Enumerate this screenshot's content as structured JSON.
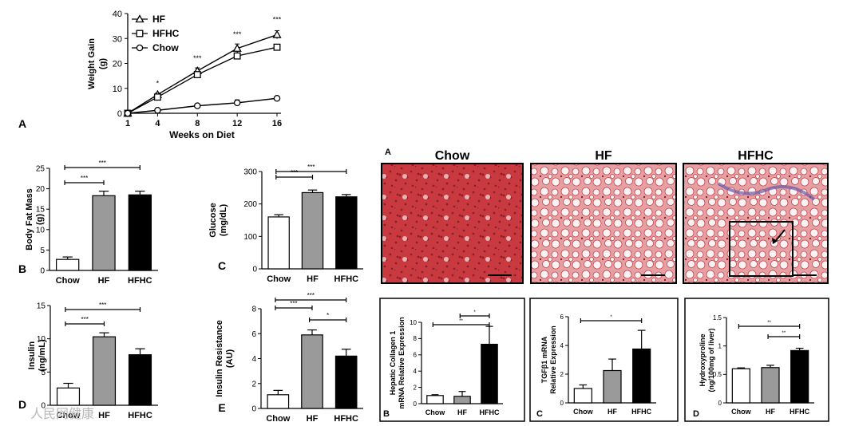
{
  "colors": {
    "white": "#ffffff",
    "gray": "#9a9a9a",
    "black": "#000000",
    "stain_red": "#c8313a",
    "stain_blue": "#6a5aa8"
  },
  "panel_letters": {
    "a": "A",
    "b": "B",
    "c": "C",
    "d": "D",
    "e": "E",
    "right_a": "A",
    "right_b": "B",
    "right_c": "C",
    "right_d": "D"
  },
  "histology": {
    "titles": [
      "Chow",
      "HF",
      "HFHC"
    ]
  },
  "watermark": "人民网健康",
  "chart_data": [
    {
      "id": "weight",
      "type": "line",
      "xlabel": "Weeks on Diet",
      "ylabel": "Weight Gain (g)",
      "x": [
        1,
        4,
        8,
        12,
        16
      ],
      "xticks": [
        1,
        4,
        8,
        12,
        16
      ],
      "ylim": [
        0,
        40
      ],
      "yticks": [
        0,
        10,
        20,
        30,
        40
      ],
      "legend_position": "top-left",
      "series": [
        {
          "name": "HF",
          "marker": "triangle",
          "values": [
            0,
            7.5,
            17,
            26,
            31.5
          ],
          "err": [
            0,
            0.6,
            1.2,
            1.8,
            1.6
          ]
        },
        {
          "name": "HFHC",
          "marker": "square",
          "values": [
            0,
            6.5,
            15.5,
            23,
            26.5
          ],
          "err": [
            0,
            0.5,
            0.9,
            1.0,
            0.8
          ]
        },
        {
          "name": "Chow",
          "marker": "circle",
          "values": [
            0,
            1.2,
            3,
            4.2,
            6
          ],
          "err": [
            0,
            0.3,
            0.5,
            1.2,
            0.4
          ]
        }
      ],
      "annotations": [
        {
          "x": 4,
          "text": "*"
        },
        {
          "x": 8,
          "text": "***"
        },
        {
          "x": 12,
          "text": "***"
        },
        {
          "x": 16,
          "text": "***"
        }
      ]
    },
    {
      "id": "bodyfat",
      "type": "bar",
      "ylabel": "Body Fat Mass (g)",
      "categories": [
        "Chow",
        "HF",
        "HFHC"
      ],
      "values": [
        2.7,
        18.3,
        18.5
      ],
      "err": [
        0.6,
        1.1,
        0.9
      ],
      "ylim": [
        0,
        25
      ],
      "yticks": [
        0,
        5,
        10,
        15,
        20,
        25
      ],
      "brackets": [
        {
          "from": 0,
          "to": 1,
          "text": "***"
        },
        {
          "from": 0,
          "to": 2,
          "text": "***"
        }
      ]
    },
    {
      "id": "glucose",
      "type": "bar",
      "ylabel": "Glucose (mg/dL)",
      "categories": [
        "Chow",
        "HF",
        "HFHC"
      ],
      "values": [
        160,
        235,
        222
      ],
      "err": [
        7,
        8,
        7
      ],
      "ylim": [
        0,
        300
      ],
      "yticks": [
        0,
        100,
        200,
        300
      ],
      "brackets": [
        {
          "from": 0,
          "to": 1,
          "text": "***"
        },
        {
          "from": 0,
          "to": 2,
          "text": "***"
        }
      ]
    },
    {
      "id": "insulin",
      "type": "bar",
      "ylabel": "Insulin (ng/mL)",
      "categories": [
        "Chow",
        "HF",
        "HFHC"
      ],
      "values": [
        2.6,
        10.3,
        7.6
      ],
      "err": [
        0.7,
        0.6,
        0.9
      ],
      "ylim": [
        0,
        15
      ],
      "yticks": [
        0,
        5,
        10,
        15
      ],
      "brackets": [
        {
          "from": 0,
          "to": 1,
          "text": "***"
        },
        {
          "from": 0,
          "to": 2,
          "text": "***"
        }
      ]
    },
    {
      "id": "insres",
      "type": "bar",
      "ylabel": "Insulin Resistance (AU)",
      "categories": [
        "Chow",
        "HF",
        "HFHC"
      ],
      "values": [
        1.1,
        5.9,
        4.2
      ],
      "err": [
        0.35,
        0.4,
        0.55
      ],
      "ylim": [
        0,
        8
      ],
      "yticks": [
        0,
        2,
        4,
        6,
        8
      ],
      "brackets": [
        {
          "from": 0,
          "to": 1,
          "text": "***"
        },
        {
          "from": 1,
          "to": 2,
          "text": "*"
        },
        {
          "from": 0,
          "to": 2,
          "text": "***"
        }
      ]
    },
    {
      "id": "collagen",
      "type": "bar",
      "ylabel": "Hepatic Collagen 1 mRNA Relative Expression",
      "categories": [
        "Chow",
        "HF",
        "HFHC"
      ],
      "values": [
        1.0,
        0.9,
        7.3
      ],
      "err": [
        0.1,
        0.6,
        2.2
      ],
      "ylim": [
        0,
        10
      ],
      "yticks": [
        0,
        2,
        4,
        6,
        8,
        10
      ],
      "brackets": [
        {
          "from": 1,
          "to": 2,
          "text": "*"
        },
        {
          "from": 0,
          "to": 2,
          "text": "**"
        }
      ]
    },
    {
      "id": "tgfb",
      "type": "bar",
      "ylabel": "TGFβ1 mRNA Relative Expression",
      "categories": [
        "Chow",
        "HF",
        "HFHC"
      ],
      "values": [
        1.0,
        2.25,
        3.75
      ],
      "err": [
        0.25,
        0.8,
        1.3
      ],
      "ylim": [
        0,
        6
      ],
      "yticks": [
        0,
        2,
        4,
        6
      ],
      "brackets": [
        {
          "from": 0,
          "to": 2,
          "text": "*"
        }
      ]
    },
    {
      "id": "hydroxy",
      "type": "bar",
      "ylabel": "Hydroxyproline (ng/100mg of liver)",
      "categories": [
        "Chow",
        "HF",
        "HFHC"
      ],
      "values": [
        0.6,
        0.62,
        0.92
      ],
      "err": [
        0.015,
        0.04,
        0.04
      ],
      "ylim": [
        0,
        1.5
      ],
      "yticks": [
        0.0,
        0.5,
        1.0,
        1.5
      ],
      "brackets": [
        {
          "from": 1,
          "to": 2,
          "text": "**"
        },
        {
          "from": 0,
          "to": 2,
          "text": "**"
        }
      ]
    }
  ]
}
